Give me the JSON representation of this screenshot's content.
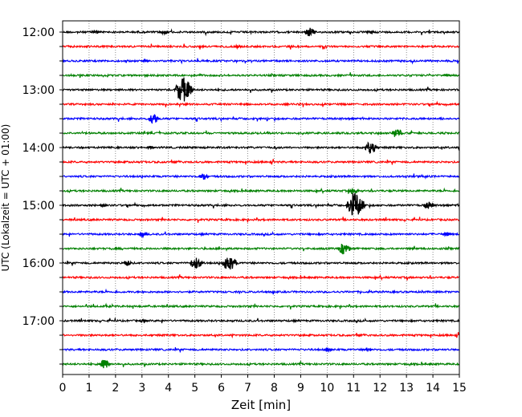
{
  "chart_data": {
    "type": "line",
    "title": "",
    "xlabel": "Zeit  [min]",
    "ylabel": "UTC (Lokalzeit = UTC + 01:00)",
    "xlim": [
      0,
      15
    ],
    "xticks": [
      "0",
      "1",
      "2",
      "3",
      "4",
      "5",
      "6",
      "7",
      "8",
      "9",
      "10",
      "11",
      "12",
      "13",
      "14",
      "15"
    ],
    "yticks": [
      "12:00",
      "13:00",
      "14:00",
      "15:00",
      "16:00",
      "17:00"
    ],
    "grid": "vertical dotted at each minute",
    "colors": [
      "#000000",
      "#ff0000",
      "#0000ff",
      "#008000"
    ],
    "traces": [
      {
        "start": "12:00",
        "color": "#000000",
        "events": [
          [
            1.2,
            0.12
          ],
          [
            3.8,
            0.15
          ],
          [
            9.3,
            0.35
          ],
          [
            11.6,
            0.12
          ]
        ]
      },
      {
        "start": "12:15",
        "color": "#ff0000",
        "events": [
          [
            6.6,
            0.12
          ]
        ]
      },
      {
        "start": "12:30",
        "color": "#0000ff",
        "events": [
          [
            3.1,
            0.1
          ]
        ]
      },
      {
        "start": "12:45",
        "color": "#008000",
        "events": [
          [
            14.5,
            0.1
          ]
        ]
      },
      {
        "start": "13:00",
        "color": "#000000",
        "events": [
          [
            4.5,
            0.95
          ]
        ]
      },
      {
        "start": "13:15",
        "color": "#ff0000",
        "events": []
      },
      {
        "start": "13:30",
        "color": "#0000ff",
        "events": [
          [
            3.4,
            0.35
          ]
        ]
      },
      {
        "start": "13:45",
        "color": "#008000",
        "events": [
          [
            12.6,
            0.35
          ]
        ]
      },
      {
        "start": "14:00",
        "color": "#000000",
        "events": [
          [
            3.3,
            0.12
          ],
          [
            11.6,
            0.45
          ]
        ]
      },
      {
        "start": "14:15",
        "color": "#ff0000",
        "events": []
      },
      {
        "start": "14:30",
        "color": "#0000ff",
        "events": [
          [
            5.3,
            0.25
          ]
        ]
      },
      {
        "start": "14:45",
        "color": "#008000",
        "events": [
          [
            10.95,
            0.3
          ]
        ]
      },
      {
        "start": "15:00",
        "color": "#000000",
        "events": [
          [
            11.0,
            1.0
          ],
          [
            13.8,
            0.35
          ],
          [
            1.5,
            0.1
          ]
        ]
      },
      {
        "start": "15:15",
        "color": "#ff0000",
        "events": []
      },
      {
        "start": "15:30",
        "color": "#0000ff",
        "events": [
          [
            3.0,
            0.2
          ],
          [
            14.5,
            0.15
          ]
        ]
      },
      {
        "start": "15:45",
        "color": "#008000",
        "events": [
          [
            10.6,
            0.45
          ]
        ]
      },
      {
        "start": "16:00",
        "color": "#000000",
        "events": [
          [
            5.0,
            0.45
          ],
          [
            6.25,
            0.65
          ],
          [
            2.4,
            0.2
          ]
        ]
      },
      {
        "start": "16:15",
        "color": "#ff0000",
        "events": []
      },
      {
        "start": "16:30",
        "color": "#0000ff",
        "events": []
      },
      {
        "start": "16:45",
        "color": "#008000",
        "events": []
      },
      {
        "start": "17:00",
        "color": "#000000",
        "events": [
          [
            3.0,
            0.12
          ]
        ]
      },
      {
        "start": "17:15",
        "color": "#ff0000",
        "events": []
      },
      {
        "start": "17:30",
        "color": "#0000ff",
        "events": [
          [
            10.0,
            0.15
          ],
          [
            11.5,
            0.12
          ]
        ]
      },
      {
        "start": "17:45",
        "color": "#008000",
        "events": [
          [
            1.55,
            0.35
          ]
        ]
      }
    ]
  }
}
